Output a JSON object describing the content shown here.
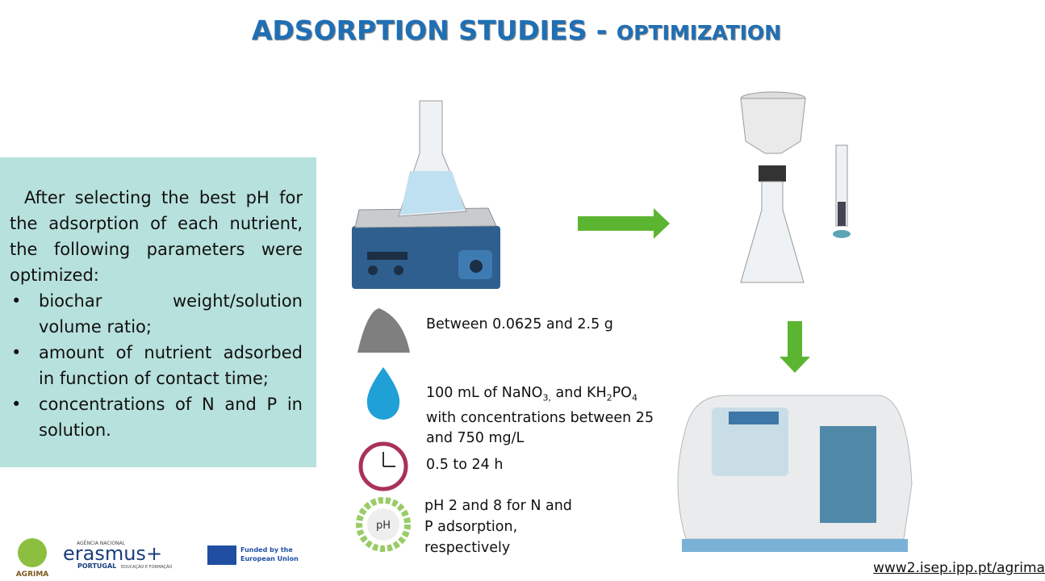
{
  "header": {
    "title_main": "ADSORPTION STUDIES -",
    "title_small": "OPTIMIZATION"
  },
  "panel": {
    "intro": "After selecting the best pH for the adsorption of each nutrient, the following parameters were optimized:",
    "bullets": [
      "biochar weight/solution volume ratio;",
      "amount of nutrient adsorbed in function of contact time;",
      "concentrations of N and P in solution."
    ]
  },
  "parameters": {
    "mass": "Between 0.0625 and 2.5 g",
    "volume": [
      "100 mL of NaNO",
      "3,",
      " and KH",
      "2",
      "PO",
      "4",
      " with concentrations between 25 and 750 mg/L"
    ],
    "time": "0.5 to 24 h",
    "ph": "pH 2 and 8 for N and P adsorption, respectively",
    "ph_icon": "pH"
  },
  "footer": {
    "agrima": "AGRIMA",
    "agency": "AGÊNCIA NACIONAL",
    "erasmus": "erasmus+",
    "portugal": "PORTUGAL",
    "portugal_sub": "EDUCAÇÃO E FORMAÇÃO",
    "eu": "Funded by the European Union",
    "url": "www2.isep.ipp.pt/agrima"
  }
}
